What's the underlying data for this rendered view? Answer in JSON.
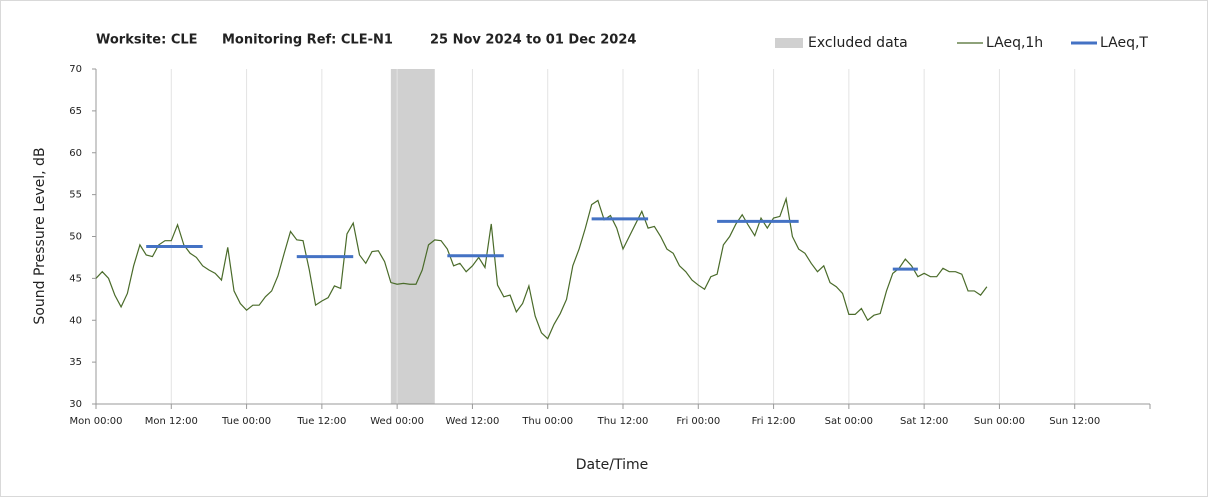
{
  "chart_data": {
    "type": "line",
    "title_parts": [
      "Worksite: CLE",
      "Monitoring Ref: CLE-N1",
      "25 Nov 2024 to 01 Dec 2024"
    ],
    "x_label": "Date/Time",
    "y_label": "Sound Pressure Level, dB",
    "xlim": [
      0,
      168
    ],
    "xticks": [
      {
        "value": 0,
        "label": "Mon 00:00"
      },
      {
        "value": 12,
        "label": "Mon 12:00"
      },
      {
        "value": 24,
        "label": "Tue 00:00"
      },
      {
        "value": 36,
        "label": "Tue 12:00"
      },
      {
        "value": 48,
        "label": "Wed 00:00"
      },
      {
        "value": 60,
        "label": "Wed 12:00"
      },
      {
        "value": 72,
        "label": "Thu 00:00"
      },
      {
        "value": 84,
        "label": "Thu 12:00"
      },
      {
        "value": 96,
        "label": "Fri 00:00"
      },
      {
        "value": 108,
        "label": "Fri 12:00"
      },
      {
        "value": 120,
        "label": "Sat 00:00"
      },
      {
        "value": 132,
        "label": "Sat 12:00"
      },
      {
        "value": 144,
        "label": "Sun 00:00"
      },
      {
        "value": 156,
        "label": "Sun 12:00"
      }
    ],
    "ylim": [
      30,
      70
    ],
    "yticks": [
      30,
      35,
      40,
      45,
      50,
      55,
      60,
      65,
      70
    ],
    "grid": true,
    "excluded": {
      "name": "Excluded data",
      "start": 47,
      "end": 54,
      "color": "#d0d0d0"
    },
    "series": [
      {
        "name": "LAeq,1h",
        "color": "#4a6b2a",
        "x": [
          0,
          1,
          2,
          3,
          4,
          5,
          6,
          7,
          8,
          9,
          10,
          11,
          12,
          13,
          14,
          15,
          16,
          17,
          18,
          19,
          20,
          21,
          22,
          23,
          24,
          25,
          26,
          27,
          28,
          29,
          30,
          31,
          32,
          33,
          34,
          35,
          36,
          37,
          38,
          39,
          40,
          41,
          42,
          43,
          44,
          45,
          46,
          47,
          48,
          49,
          50,
          51,
          52,
          53,
          54,
          55,
          56,
          57,
          58,
          59,
          60,
          61,
          62,
          63,
          64,
          65,
          66,
          67,
          68,
          69,
          70,
          71,
          72,
          73,
          74,
          75,
          76,
          77,
          78,
          79,
          80,
          81,
          82,
          83,
          84,
          85,
          86,
          87,
          88,
          89,
          90,
          91,
          92,
          93,
          94,
          95,
          96,
          97,
          98,
          99,
          100,
          101,
          102,
          103,
          104,
          105,
          106,
          107,
          108,
          109,
          110,
          111,
          112,
          113,
          114,
          115,
          116,
          117,
          118,
          119,
          120,
          121,
          122,
          123,
          124,
          125,
          126,
          127,
          128,
          129,
          130,
          131,
          132,
          133,
          134,
          135,
          136,
          137,
          138,
          139,
          140,
          141,
          142
        ],
        "values": [
          45,
          45.8,
          45,
          43,
          41.6,
          43.2,
          46.5,
          49,
          47.8,
          47.6,
          49,
          49.5,
          49.5,
          51.4,
          49,
          48,
          47.5,
          46.5,
          46,
          45.6,
          44.8,
          48.7,
          43.5,
          42,
          41.2,
          41.8,
          41.8,
          42.8,
          43.5,
          45.3,
          48,
          50.6,
          49.6,
          49.5,
          46,
          41.8,
          42.3,
          42.7,
          44.1,
          43.8,
          50.3,
          51.6,
          47.8,
          46.8,
          48.2,
          48.3,
          47,
          44.5,
          44.3,
          44.4,
          44.3,
          44.3,
          46,
          49,
          49.6,
          49.5,
          48.5,
          46.5,
          46.8,
          45.8,
          46.5,
          47.5,
          46.3,
          51.5,
          44.2,
          42.8,
          43,
          41,
          42,
          44.1,
          40.5,
          38.5,
          37.8,
          39.5,
          40.8,
          42.5,
          46.5,
          48.5,
          51,
          53.8,
          54.3,
          52,
          52.5,
          51,
          48.5,
          50,
          51.5,
          53,
          51,
          51.2,
          50,
          48.5,
          48,
          46.5,
          45.8,
          44.8,
          44.2,
          43.7,
          45.2,
          45.5,
          49,
          50,
          51.5,
          52.6,
          51.3,
          50.1,
          52.2,
          51,
          52.2,
          52.4,
          54.5,
          50,
          48.5,
          48,
          46.8,
          45.8,
          46.5,
          44.5,
          44,
          43.2,
          40.7,
          40.7,
          41.4,
          40,
          40.6,
          40.8,
          43.5,
          45.6,
          46.2,
          47.3,
          46.5,
          45.2,
          45.6,
          45.2,
          45.2,
          46.2,
          45.8,
          45.8,
          45.5,
          43.5,
          43.5,
          43,
          44
        ]
      },
      {
        "name": "LAeq,T",
        "color": "#4472c4",
        "segments": [
          {
            "start": 8,
            "end": 17,
            "value": 48.8
          },
          {
            "start": 32,
            "end": 41,
            "value": 47.6
          },
          {
            "start": 56,
            "end": 65,
            "value": 47.7
          },
          {
            "start": 79,
            "end": 88,
            "value": 52.1
          },
          {
            "start": 99,
            "end": 112,
            "value": 51.8
          },
          {
            "start": 127,
            "end": 131,
            "value": 46.1
          }
        ]
      }
    ]
  }
}
